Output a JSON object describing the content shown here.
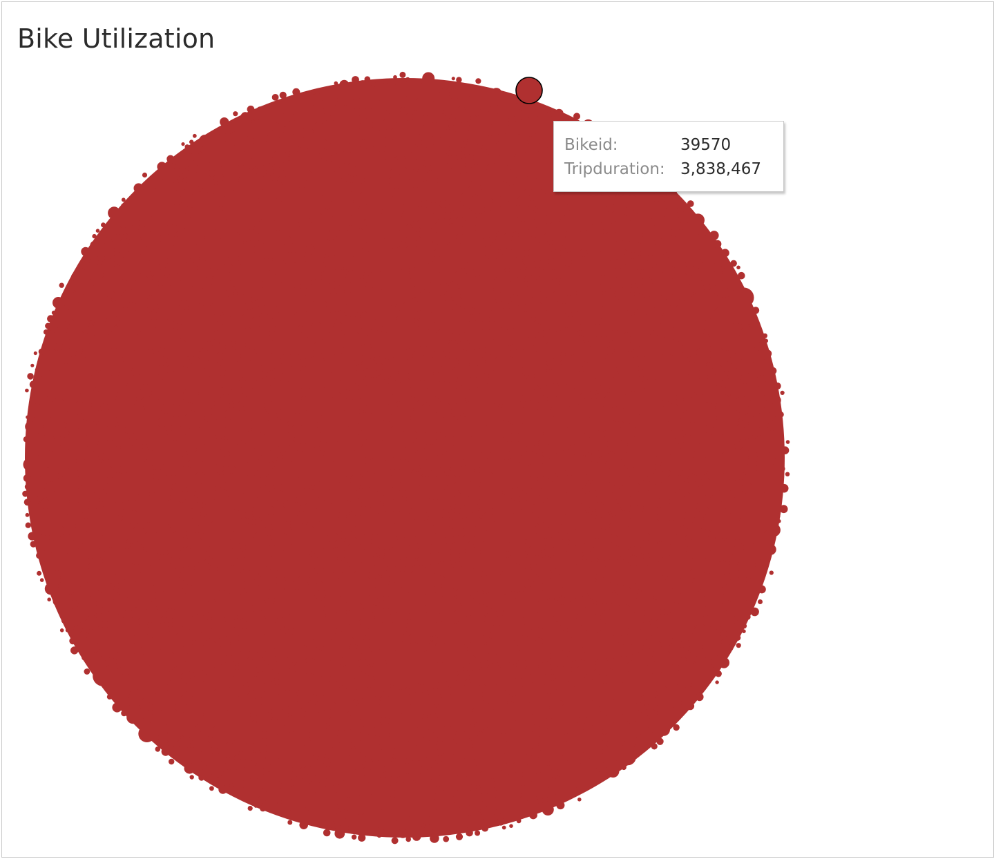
{
  "title": "Bike Utilization",
  "colors": {
    "bubble_fill": "#b03030",
    "highlight_stroke": "#000000",
    "title_text": "#2b2b2b",
    "tooltip_label": "#8a8a8a",
    "tooltip_value": "#2b2b2b"
  },
  "tooltip": {
    "rows": [
      {
        "label": "Bikeid:",
        "value": "39570"
      },
      {
        "label": "Tripduration:",
        "value": "3,838,467"
      }
    ]
  },
  "chart_data": {
    "type": "packed-bubble",
    "measure": "Tripduration",
    "dimension": "Bikeid",
    "size_encoding": "Tripduration",
    "color": "#b03030",
    "highlighted": {
      "bikeid": "39570",
      "tripduration": 3838467
    }
  }
}
